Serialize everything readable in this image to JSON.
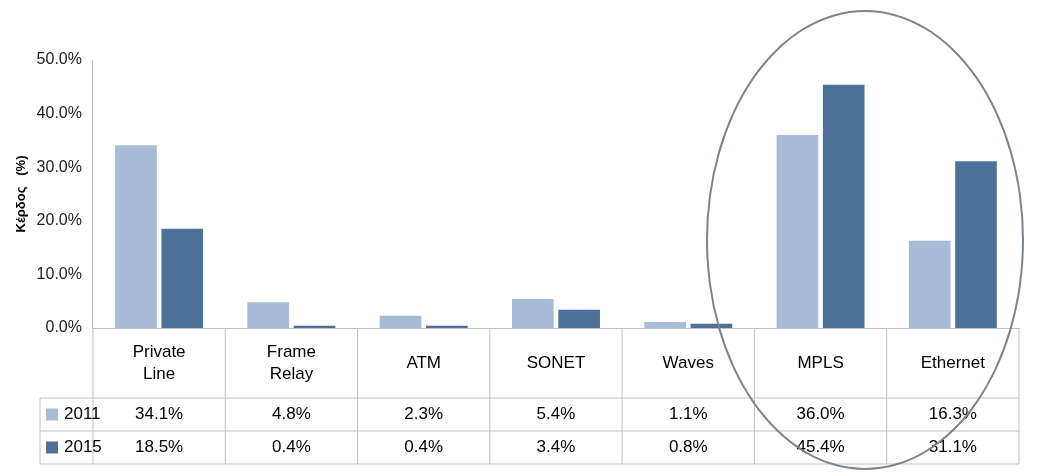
{
  "chart_data": {
    "type": "bar",
    "ylabel": "Κέρδος   (%)",
    "categories": [
      "Private Line",
      "Frame Relay",
      "ATM",
      "SONET",
      "Waves",
      "MPLS",
      "Ethernet"
    ],
    "series": [
      {
        "name": "2011",
        "color": "#a7bcd7",
        "values": [
          34.1,
          4.8,
          2.3,
          5.4,
          1.1,
          36.0,
          16.3
        ],
        "value_labels": [
          "34.1%",
          "4.8%",
          "2.3%",
          "5.4%",
          "1.1%",
          "36.0%",
          "16.3%"
        ]
      },
      {
        "name": "2015",
        "color": "#4e7297",
        "values": [
          18.5,
          0.4,
          0.4,
          3.4,
          0.8,
          45.4,
          31.1
        ],
        "value_labels": [
          "18.5%",
          "0.4%",
          "0.4%",
          "3.4%",
          "0.8%",
          "45.4%",
          "31.1%"
        ]
      }
    ],
    "ylim": [
      0,
      50
    ],
    "yticks": [
      {
        "value": 0,
        "label": "0.0%"
      },
      {
        "value": 10,
        "label": "10.0%"
      },
      {
        "value": 20,
        "label": "20.0%"
      },
      {
        "value": 30,
        "label": "30.0%"
      },
      {
        "value": 40,
        "label": "40.0%"
      },
      {
        "value": 50,
        "label": "50.0%"
      }
    ],
    "legend": "bottom"
  }
}
